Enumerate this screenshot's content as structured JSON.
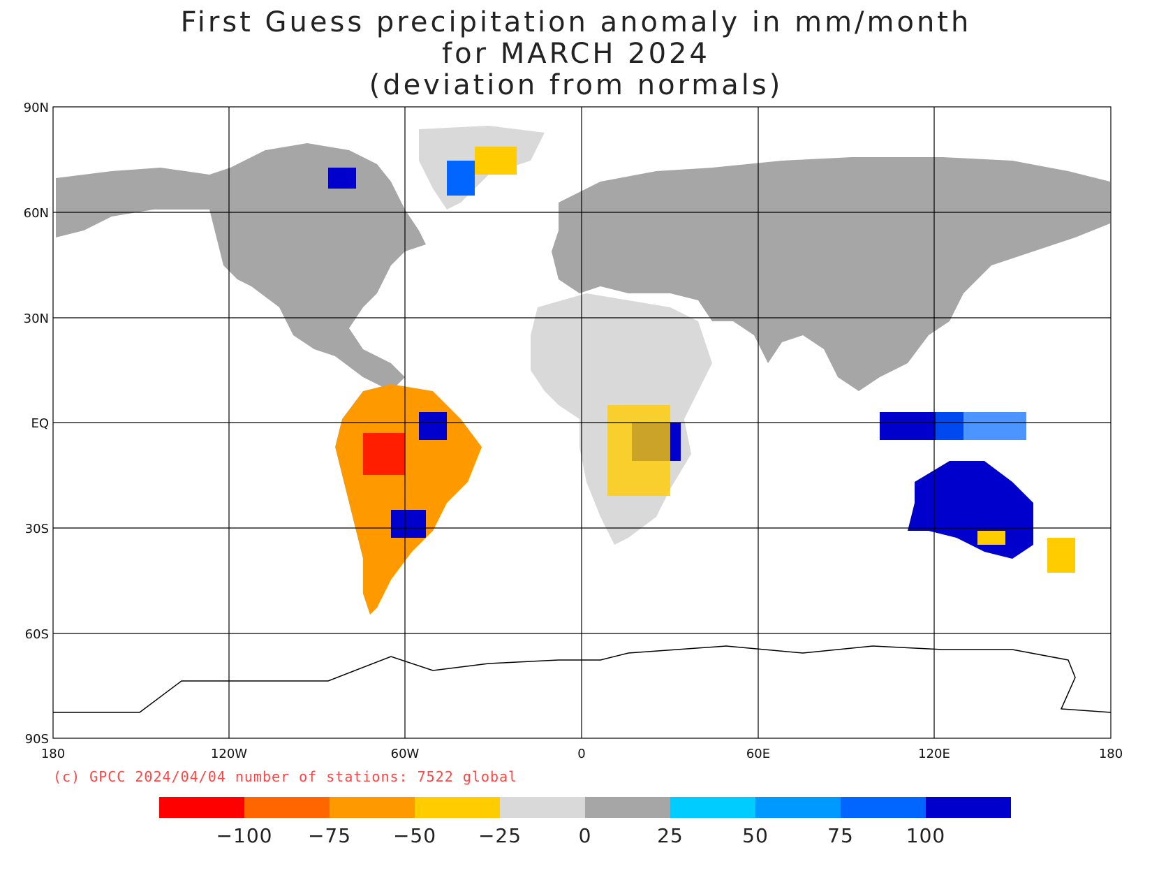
{
  "title": {
    "line1": "First Guess precipitation anomaly in mm/month",
    "line2": "for MARCH 2024",
    "line3": "(deviation from normals)"
  },
  "axes": {
    "lat_labels": [
      "90N",
      "60N",
      "30N",
      "EQ",
      "30S",
      "60S",
      "90S"
    ],
    "lon_labels": [
      "180",
      "120W",
      "60W",
      "0",
      "60E",
      "120E",
      "180"
    ]
  },
  "credit": "(c) GPCC 2024/04/04 number of stations: 7522 global",
  "colorbar": {
    "colors": [
      "#ff0000",
      "#ff6600",
      "#ff9900",
      "#ffcc00",
      "#d9d9d9",
      "#a6a6a6",
      "#00ccff",
      "#0099ff",
      "#0066ff",
      "#0000cc"
    ],
    "tick_labels": [
      "-100",
      "-75",
      "-50",
      "-25",
      "0",
      "25",
      "50",
      "75",
      "100"
    ]
  },
  "legend_colors": {
    "ocean": "#ffffff",
    "coastline": "#000000",
    "grid": "#000000"
  }
}
